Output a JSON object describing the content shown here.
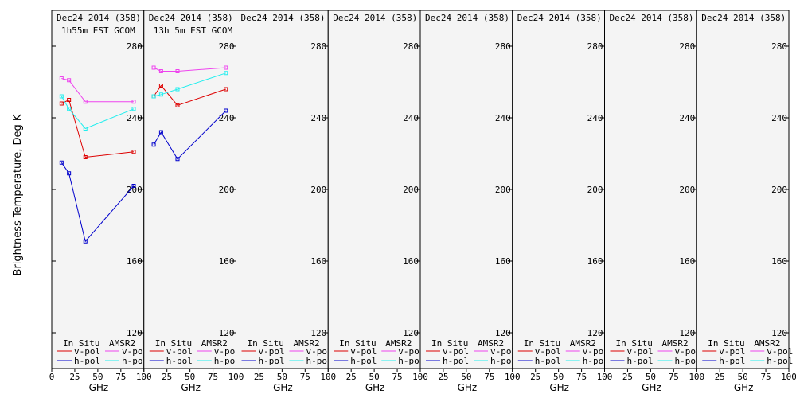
{
  "chart_data": {
    "type": "line",
    "ylabel": "Brightness Temperature, Deg K",
    "xlabel": "GHz",
    "xlim": [
      0,
      100
    ],
    "ylim": [
      100,
      300
    ],
    "xticks": [
      0,
      25,
      50,
      75,
      100
    ],
    "yticks": [
      120,
      160,
      200,
      240,
      280
    ],
    "legend": {
      "position": "bottom",
      "headers": [
        "In Situ",
        "AMSR2"
      ],
      "entries": [
        "v-pol",
        "h-pol",
        "v-pol",
        "h-pol"
      ]
    },
    "colors": {
      "insitu_v": "#dd0000",
      "insitu_h": "#0000cc",
      "amsr2_v": "#ee44ee",
      "amsr2_h": "#22eeee",
      "background": "#f4f4f4"
    },
    "panels": [
      {
        "title": "Dec24 2014 (358)",
        "subtitle": "1h55m EST GCOM",
        "series": {
          "insitu_v": [
            [
              10.65,
              248
            ],
            [
              18.7,
              250
            ],
            [
              36.5,
              218
            ],
            [
              89,
              221
            ]
          ],
          "insitu_h": [
            [
              10.65,
              215
            ],
            [
              18.7,
              209
            ],
            [
              36.5,
              171
            ],
            [
              89,
              202
            ]
          ],
          "amsr2_v": [
            [
              10.65,
              262
            ],
            [
              18.7,
              261
            ],
            [
              36.5,
              249
            ],
            [
              89,
              249
            ]
          ],
          "amsr2_h": [
            [
              10.65,
              252
            ],
            [
              18.7,
              245
            ],
            [
              36.5,
              234
            ],
            [
              89,
              245
            ]
          ]
        }
      },
      {
        "title": "Dec24 2014 (358)",
        "subtitle": "13h 5m EST GCOM",
        "series": {
          "insitu_v": [
            [
              10.65,
              252
            ],
            [
              18.7,
              258
            ],
            [
              36.5,
              247
            ],
            [
              89,
              256
            ]
          ],
          "insitu_h": [
            [
              10.65,
              225
            ],
            [
              18.7,
              232
            ],
            [
              36.5,
              217
            ],
            [
              89,
              244
            ]
          ],
          "amsr2_v": [
            [
              10.65,
              268
            ],
            [
              18.7,
              266
            ],
            [
              36.5,
              266
            ],
            [
              89,
              268
            ]
          ],
          "amsr2_h": [
            [
              10.65,
              252
            ],
            [
              18.7,
              253
            ],
            [
              36.5,
              256
            ],
            [
              89,
              265
            ]
          ]
        }
      },
      {
        "title": "Dec24 2014 (358)",
        "subtitle": "",
        "series": {}
      },
      {
        "title": "Dec24 2014 (358)",
        "subtitle": "",
        "series": {}
      },
      {
        "title": "Dec24 2014 (358)",
        "subtitle": "",
        "series": {}
      },
      {
        "title": "Dec24 2014 (358)",
        "subtitle": "",
        "series": {}
      },
      {
        "title": "Dec24 2014 (358)",
        "subtitle": "",
        "series": {}
      },
      {
        "title": "Dec24 2014 (358)",
        "subtitle": "",
        "series": {}
      }
    ]
  }
}
